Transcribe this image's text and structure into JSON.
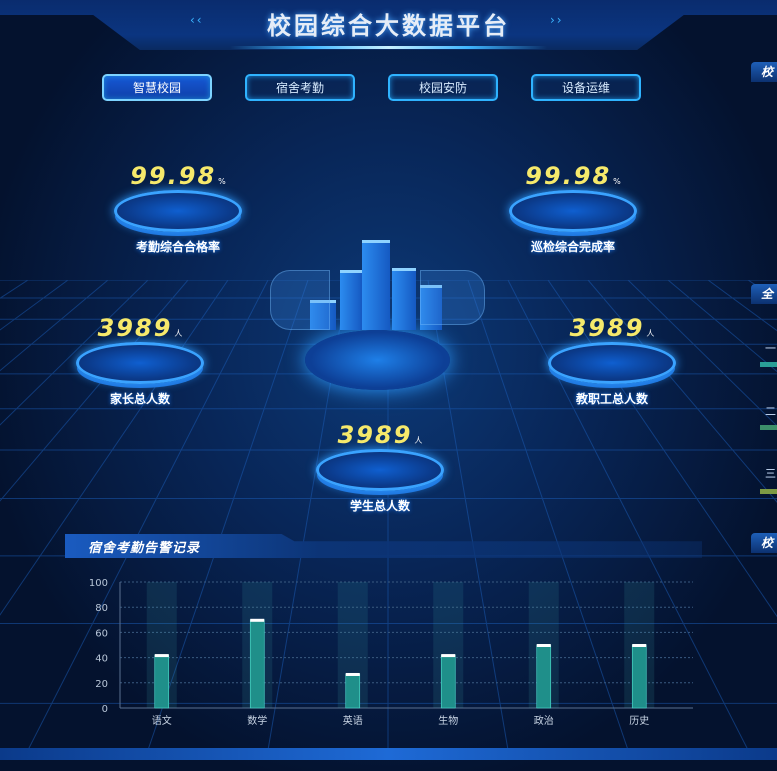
{
  "header": {
    "title": "校园综合大数据平台",
    "left_deco": "‹‹",
    "right_deco": "››"
  },
  "tabs": [
    {
      "label": "智慧校园",
      "active": true
    },
    {
      "label": "宿舍考勤",
      "active": false
    },
    {
      "label": "校园安防",
      "active": false
    },
    {
      "label": "设备运维",
      "active": false
    }
  ],
  "stats": {
    "attendance": {
      "value": "99.98",
      "unit": "%",
      "label": "考勤综合合格率"
    },
    "patrol": {
      "value": "99.98",
      "unit": "%",
      "label": "巡检综合完成率"
    },
    "parents": {
      "value": "3989",
      "unit": "人",
      "label": "家长总人数"
    },
    "staff": {
      "value": "3989",
      "unit": "人",
      "label": "教职工总人数"
    },
    "students": {
      "value": "3989",
      "unit": "人",
      "label": "学生总人数"
    }
  },
  "right_panels": {
    "panel1": "校",
    "panel2": "全",
    "panel3": "校",
    "rank_labels": [
      "一",
      "二",
      "三"
    ]
  },
  "colors": {
    "accent": "#2fb3ff",
    "value": "#f6e96b",
    "bar": "#2bb8a8"
  },
  "alarm_panel": {
    "title": "宿舍考勤告警记录"
  },
  "chart_data": {
    "type": "bar",
    "categories": [
      "语文",
      "数学",
      "英语",
      "生物",
      "政治",
      "历史"
    ],
    "values": [
      42,
      70,
      27,
      42,
      50,
      50
    ],
    "ylim": [
      0,
      100
    ],
    "yticks": [
      "0",
      "20",
      "40",
      "60",
      "80",
      "100"
    ],
    "grid": true
  }
}
